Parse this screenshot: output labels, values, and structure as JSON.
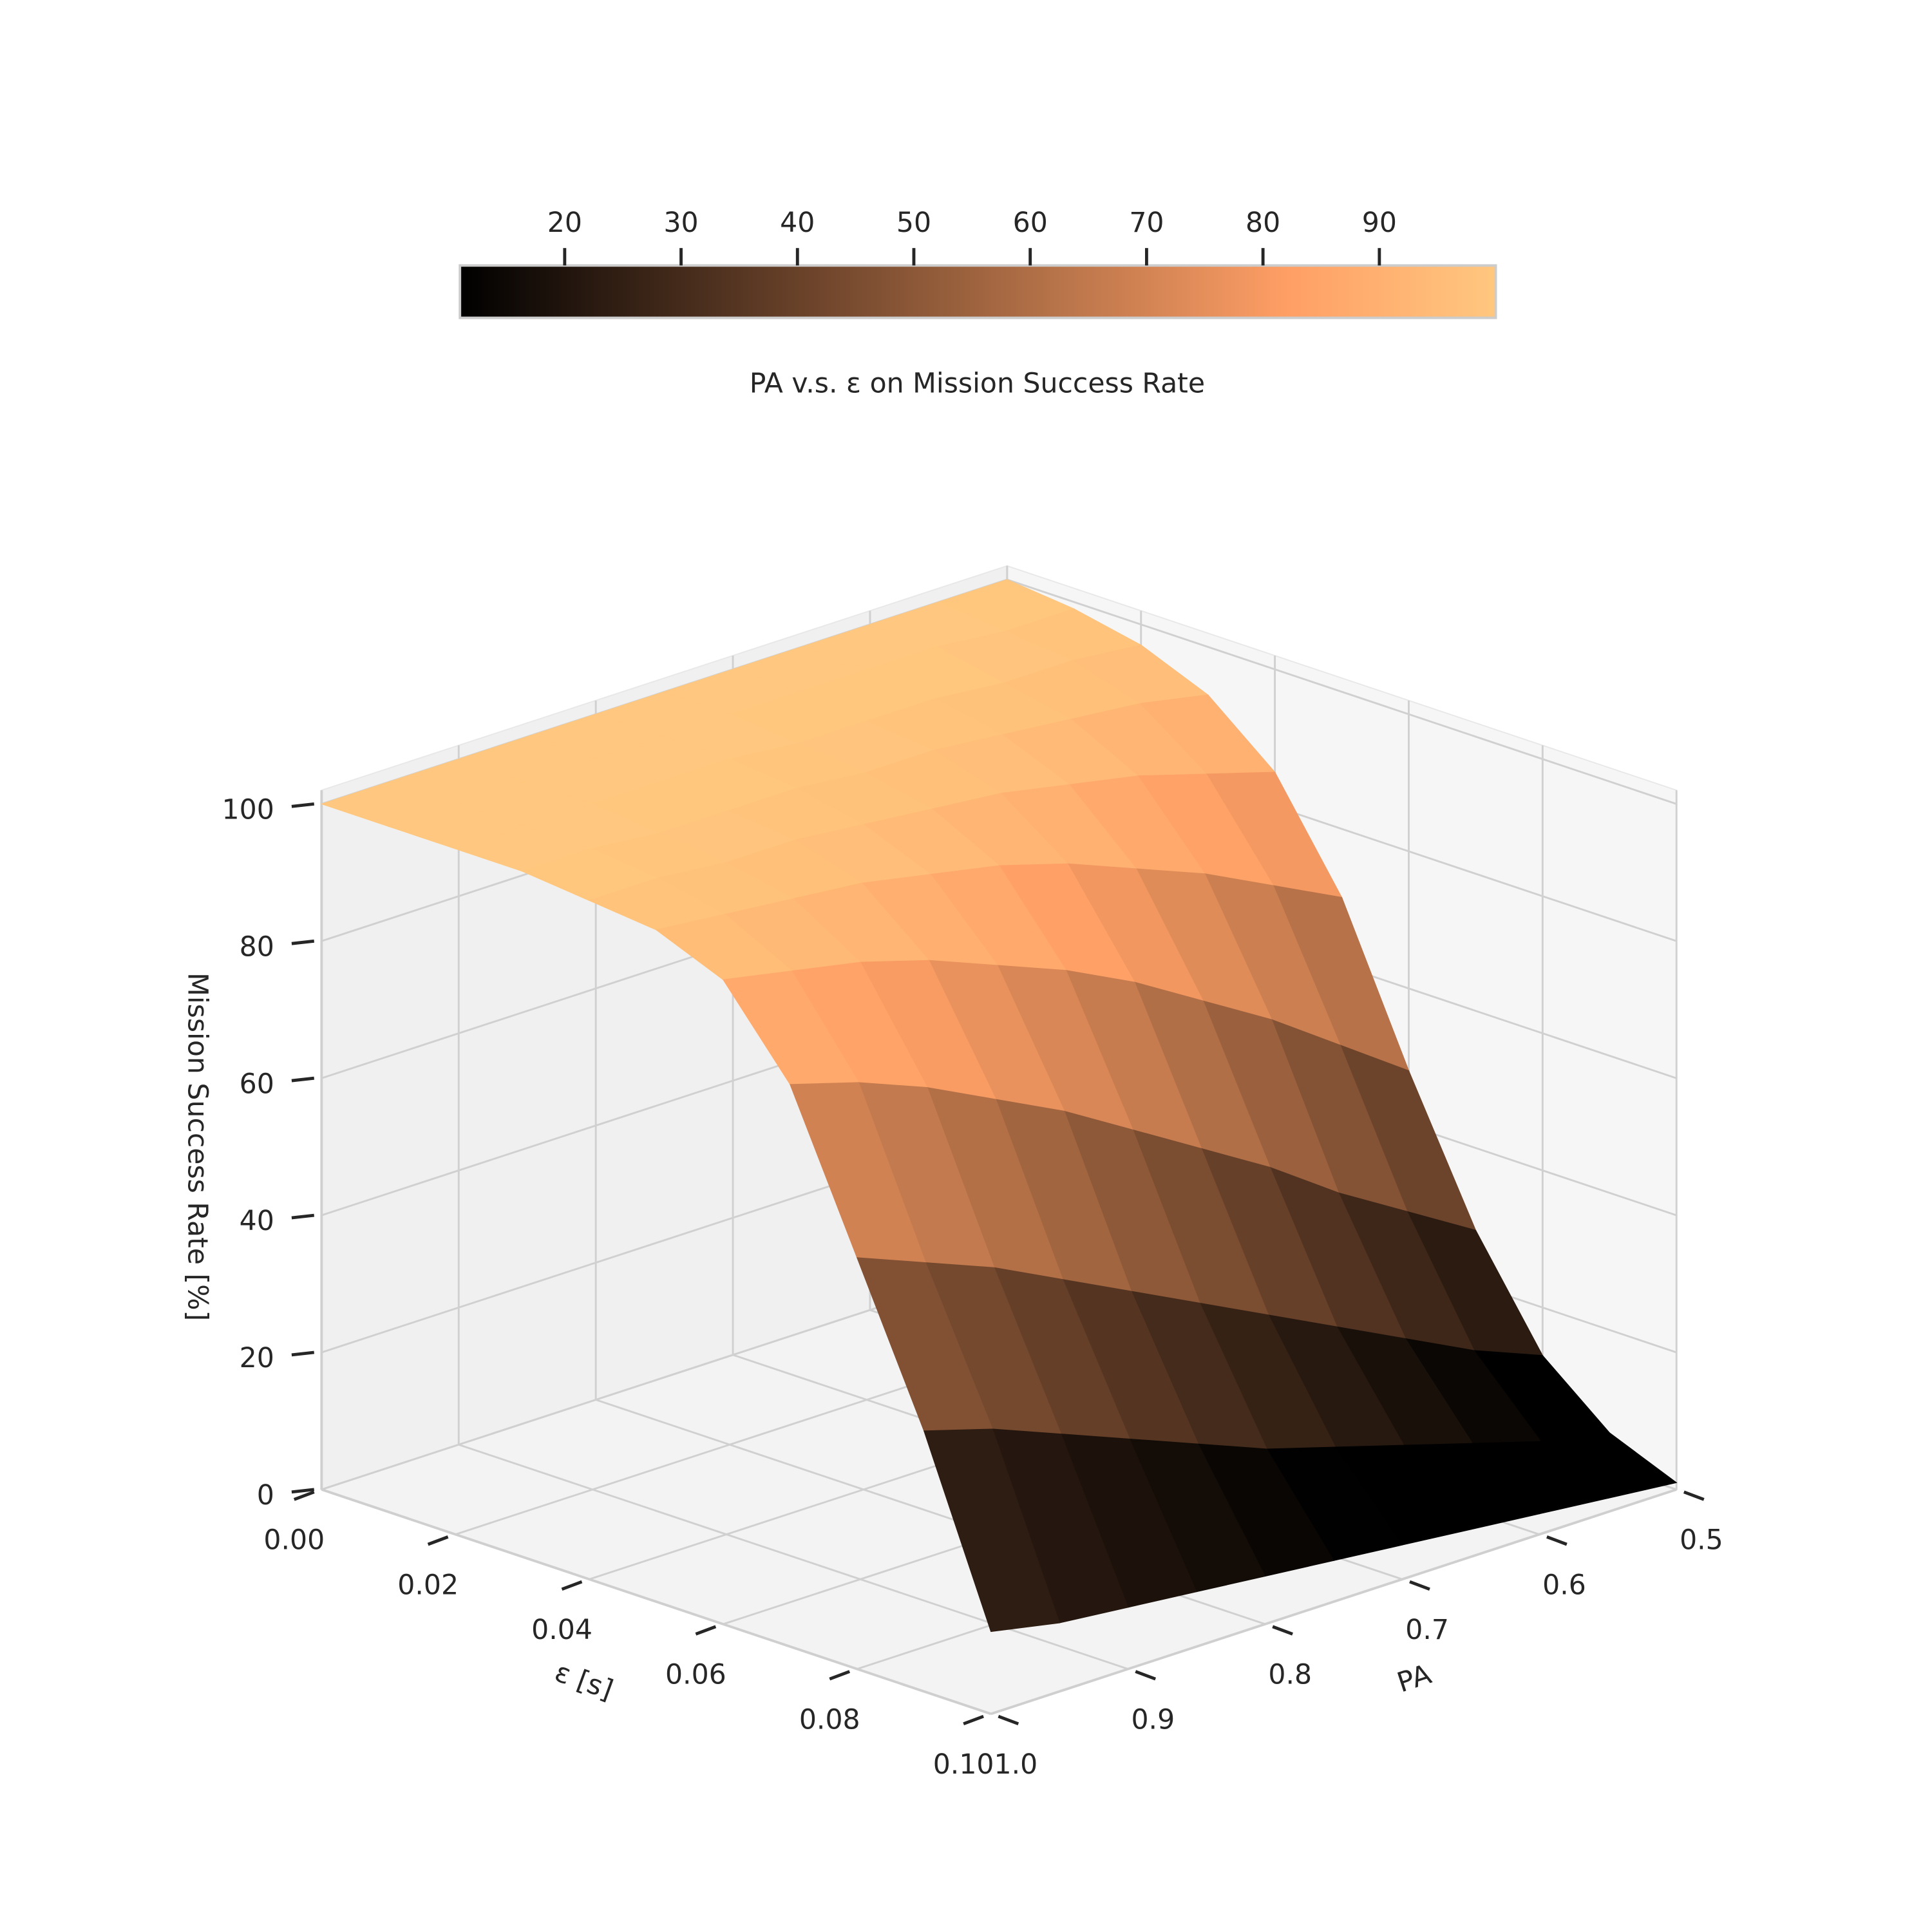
{
  "chart_data": {
    "type": "surface3d",
    "colorbar_label": "PA v.s. ε on Mission Success Rate",
    "x_label": "ε [s]",
    "y_label": "PA",
    "z_label": "Mission Success Rate [%]",
    "colormap": "copper",
    "x": [
      0,
      0.01,
      0.02,
      0.03,
      0.04,
      0.05,
      0.06,
      0.07,
      0.08,
      0.09,
      0.1
    ],
    "y": [
      0.5,
      0.55,
      0.6,
      0.65,
      0.7,
      0.75,
      0.8,
      0.85,
      0.9,
      0.95,
      1.0
    ],
    "z": [
      [
        100,
        100,
        100,
        100,
        100,
        100,
        100,
        100,
        100,
        100,
        100
      ],
      [
        99,
        99,
        100,
        100,
        100,
        100,
        100,
        100,
        100,
        100,
        100
      ],
      [
        97,
        98,
        98,
        99,
        99,
        99,
        100,
        100,
        100,
        100,
        100
      ],
      [
        93,
        95,
        96,
        97,
        98,
        98,
        99,
        99,
        99,
        100,
        100
      ],
      [
        85,
        88,
        91,
        93,
        95,
        96,
        97,
        98,
        98,
        99,
        99
      ],
      [
        70,
        75,
        80,
        84,
        88,
        91,
        93,
        95,
        96,
        97,
        98
      ],
      [
        48,
        55,
        62,
        68,
        74,
        79,
        83,
        87,
        90,
        92,
        94
      ],
      [
        28,
        34,
        40,
        47,
        53,
        59,
        65,
        70,
        75,
        79,
        82
      ],
      [
        13,
        17,
        22,
        27,
        32,
        37,
        42,
        47,
        52,
        56,
        60
      ],
      [
        5,
        7,
        10,
        13,
        16,
        19,
        23,
        27,
        31,
        35,
        38
      ],
      [
        1,
        2,
        3,
        4,
        5,
        6,
        7,
        8,
        9,
        10,
        12
      ]
    ],
    "xlim": [
      0,
      0.1
    ],
    "xticks": [
      {
        "value": 0,
        "label": "0.00"
      },
      0.02,
      0.04,
      0.06,
      0.08,
      {
        "value": 0.1,
        "label": "0.10"
      }
    ],
    "ylim": [
      0.5,
      1.0
    ],
    "yticks": [
      0.5,
      0.6,
      0.7,
      0.8,
      0.9,
      {
        "value": 1.0,
        "label": "1.0"
      }
    ],
    "zlim": [
      0,
      102
    ],
    "zticks": [
      0,
      20,
      40,
      60,
      80,
      100
    ],
    "clim": [
      11,
      100
    ],
    "cticks": [
      20,
      30,
      40,
      50,
      60,
      70,
      80,
      90
    ],
    "grid": true
  }
}
